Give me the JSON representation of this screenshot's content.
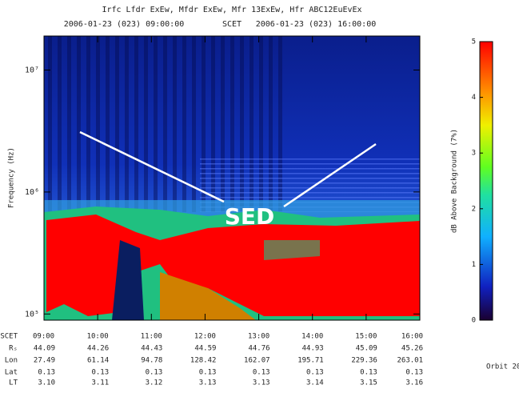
{
  "chart_data": {
    "type": "spectrogram",
    "title": "Irfc Lfdr ExEw, Mfdr ExEw, Mfr 13ExEw, Hfr ABC12EuEvEx",
    "subtitle_start": "2006-01-23 (023) 09:00:00",
    "subtitle_mid": "SCET",
    "subtitle_end": "2006-01-23 (023) 16:00:00",
    "y_label": "Frequency (Hz)",
    "y_log": true,
    "ylim": [
      89000,
      19000000
    ],
    "yticks": [
      {
        "value": 100000,
        "label": "10⁵"
      },
      {
        "value": 1000000,
        "label": "10⁶"
      },
      {
        "value": 10000000,
        "label": "10⁷"
      }
    ],
    "xlim": [
      9,
      16
    ],
    "xticks": [
      {
        "value": 9,
        "label": "09:00"
      },
      {
        "value": 10,
        "label": "10:00"
      },
      {
        "value": 11,
        "label": "11:00"
      },
      {
        "value": 12,
        "label": "12:00"
      },
      {
        "value": 13,
        "label": "13:00"
      },
      {
        "value": 14,
        "label": "14:00"
      },
      {
        "value": 15,
        "label": "15:00"
      },
      {
        "value": 16,
        "label": "16:00"
      }
    ],
    "annotation": "SED",
    "ephemeris": [
      {
        "name": "SCET"
      },
      {
        "name": "Rₛ",
        "values": [
          "44.09",
          "44.26",
          "44.43",
          "44.59",
          "44.76",
          "44.93",
          "45.09",
          "45.26"
        ]
      },
      {
        "name": "Lon",
        "values": [
          "27.49",
          "61.14",
          "94.78",
          "128.42",
          "162.07",
          "195.71",
          "229.36",
          "263.01"
        ]
      },
      {
        "name": "Lat",
        "values": [
          "0.13",
          "0.13",
          "0.13",
          "0.13",
          "0.13",
          "0.13",
          "0.13",
          "0.13"
        ]
      },
      {
        "name": "LT",
        "values": [
          "3.10",
          "3.11",
          "3.12",
          "3.13",
          "3.13",
          "3.14",
          "3.15",
          "3.16"
        ]
      }
    ],
    "colorbar": {
      "label": "dB Above Background (7%)",
      "clim": [
        0,
        5
      ],
      "ticks": [
        0,
        1,
        2,
        3,
        4,
        5
      ]
    },
    "footer": "Orbit 20"
  }
}
